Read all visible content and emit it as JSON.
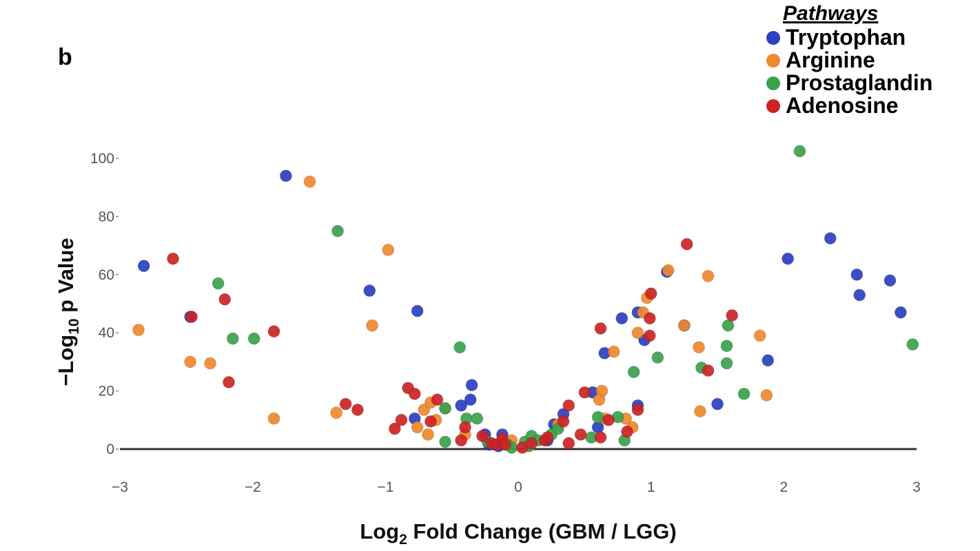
{
  "panel_label": "b",
  "legend": {
    "title": "Pathways",
    "items": [
      {
        "label": "Tryptophan",
        "color": "#2b3fc0"
      },
      {
        "label": "Arginine",
        "color": "#f0882e"
      },
      {
        "label": "Prostaglandin",
        "color": "#3aa24c"
      },
      {
        "label": "Adenosine",
        "color": "#cc2424"
      }
    ]
  },
  "chart_data": {
    "type": "scatter",
    "title": "",
    "xlabel": {
      "prefix": "Log",
      "sub": "2",
      "suffix": " Fold Change (GBM / LGG)"
    },
    "ylabel": {
      "prefix": "−Log",
      "sub": "10",
      "suffix": " p Value"
    },
    "xlim": [
      -3,
      3
    ],
    "ylim": [
      0,
      100
    ],
    "xticks": [
      {
        "value": -3,
        "label": "−3"
      },
      {
        "value": -2,
        "label": "−2"
      },
      {
        "value": -1,
        "label": "−1"
      },
      {
        "value": 0,
        "label": "0"
      },
      {
        "value": 1,
        "label": "1"
      },
      {
        "value": 2,
        "label": "2"
      },
      {
        "value": 3,
        "label": "3"
      }
    ],
    "yticks": [
      {
        "value": 0,
        "label": "0"
      },
      {
        "value": 20,
        "label": "20"
      },
      {
        "value": 40,
        "label": "40"
      },
      {
        "value": 60,
        "label": "60"
      },
      {
        "value": 80,
        "label": "80"
      },
      {
        "value": 100,
        "label": "100"
      }
    ],
    "grid": false,
    "legend_position": "top-right",
    "series": [
      {
        "name": "Tryptophan",
        "color": "#2b3fc0",
        "points": [
          [
            -2.82,
            63
          ],
          [
            -2.47,
            45.5
          ],
          [
            -1.75,
            94
          ],
          [
            -1.12,
            54.5
          ],
          [
            -0.76,
            47.5
          ],
          [
            -0.78,
            10.5
          ],
          [
            -0.35,
            22
          ],
          [
            -0.36,
            17
          ],
          [
            -0.43,
            15
          ],
          [
            -0.25,
            5
          ],
          [
            -0.22,
            1.5
          ],
          [
            -0.12,
            5
          ],
          [
            -0.15,
            1
          ],
          [
            0.27,
            8.5
          ],
          [
            0.34,
            12
          ],
          [
            0.22,
            3
          ],
          [
            0.56,
            19.5
          ],
          [
            0.6,
            7.5
          ],
          [
            0.65,
            33
          ],
          [
            0.78,
            45
          ],
          [
            0.9,
            15
          ],
          [
            0.9,
            47
          ],
          [
            0.95,
            37.5
          ],
          [
            1.12,
            61
          ],
          [
            1.25,
            42.5
          ],
          [
            1.5,
            15.5
          ],
          [
            1.88,
            30.5
          ],
          [
            2.03,
            65.5
          ],
          [
            2.35,
            72.5
          ],
          [
            2.55,
            60
          ],
          [
            2.57,
            53
          ],
          [
            2.8,
            58
          ],
          [
            2.88,
            47
          ]
        ]
      },
      {
        "name": "Arginine",
        "color": "#f0882e",
        "points": [
          [
            -2.86,
            41
          ],
          [
            -2.47,
            30
          ],
          [
            -2.32,
            29.5
          ],
          [
            -1.84,
            10.5
          ],
          [
            -1.57,
            92
          ],
          [
            -1.37,
            12.5
          ],
          [
            -1.1,
            42.5
          ],
          [
            -0.98,
            68.5
          ],
          [
            -0.76,
            7.5
          ],
          [
            -0.71,
            13.5
          ],
          [
            -0.68,
            5
          ],
          [
            -0.66,
            16
          ],
          [
            -0.62,
            10
          ],
          [
            -0.55,
            14
          ],
          [
            -0.4,
            5
          ],
          [
            -0.1,
            2
          ],
          [
            -0.05,
            3
          ],
          [
            0.3,
            8.5
          ],
          [
            0.65,
            10.5
          ],
          [
            0.63,
            20
          ],
          [
            0.61,
            17
          ],
          [
            0.72,
            33.5
          ],
          [
            0.81,
            10.5
          ],
          [
            0.86,
            7.5
          ],
          [
            0.9,
            40
          ],
          [
            0.94,
            47
          ],
          [
            0.97,
            52
          ],
          [
            1.13,
            61.5
          ],
          [
            1.25,
            42.5
          ],
          [
            1.36,
            35
          ],
          [
            1.37,
            13
          ],
          [
            1.43,
            59.5
          ],
          [
            1.82,
            39
          ],
          [
            1.87,
            18.5
          ]
        ]
      },
      {
        "name": "Prostaglandin",
        "color": "#3aa24c",
        "points": [
          [
            -2.26,
            57
          ],
          [
            -2.15,
            38
          ],
          [
            -1.99,
            38
          ],
          [
            -1.36,
            75
          ],
          [
            -0.55,
            2.5
          ],
          [
            -0.55,
            14
          ],
          [
            -0.44,
            35
          ],
          [
            -0.39,
            10.5
          ],
          [
            -0.31,
            10.5
          ],
          [
            -0.23,
            2.5
          ],
          [
            -0.08,
            1.5
          ],
          [
            -0.05,
            0.5
          ],
          [
            0.05,
            2.5
          ],
          [
            0.08,
            1
          ],
          [
            0.1,
            4.5
          ],
          [
            0.15,
            3
          ],
          [
            0.25,
            5
          ],
          [
            0.3,
            7
          ],
          [
            0.55,
            4
          ],
          [
            0.6,
            11
          ],
          [
            0.75,
            11
          ],
          [
            0.8,
            3
          ],
          [
            0.87,
            26.5
          ],
          [
            1.05,
            31.5
          ],
          [
            1.38,
            28
          ],
          [
            1.57,
            35.5
          ],
          [
            1.57,
            29.5
          ],
          [
            1.58,
            42.5
          ],
          [
            1.7,
            19
          ],
          [
            2.12,
            102.5
          ],
          [
            2.97,
            36
          ]
        ]
      },
      {
        "name": "Adenosine",
        "color": "#cc2424",
        "points": [
          [
            -2.6,
            65.5
          ],
          [
            -2.46,
            45.5
          ],
          [
            -2.21,
            51.5
          ],
          [
            -2.18,
            23
          ],
          [
            -1.84,
            40.5
          ],
          [
            -1.3,
            15.5
          ],
          [
            -1.21,
            13.5
          ],
          [
            -0.93,
            7
          ],
          [
            -0.88,
            10
          ],
          [
            -0.83,
            21
          ],
          [
            -0.78,
            19
          ],
          [
            -0.66,
            9.5
          ],
          [
            -0.61,
            17
          ],
          [
            -0.43,
            3
          ],
          [
            -0.4,
            7.5
          ],
          [
            -0.27,
            4.5
          ],
          [
            -0.2,
            2
          ],
          [
            -0.16,
            1.5
          ],
          [
            -0.12,
            3.5
          ],
          [
            -0.1,
            1.5
          ],
          [
            0.03,
            0.5
          ],
          [
            0.1,
            2
          ],
          [
            0.2,
            3
          ],
          [
            0.22,
            4
          ],
          [
            0.34,
            9.5
          ],
          [
            0.38,
            15
          ],
          [
            0.38,
            2
          ],
          [
            0.47,
            5
          ],
          [
            0.5,
            19.5
          ],
          [
            0.62,
            4
          ],
          [
            0.62,
            41.5
          ],
          [
            0.68,
            10
          ],
          [
            0.82,
            6
          ],
          [
            0.9,
            13.5
          ],
          [
            0.99,
            45
          ],
          [
            0.99,
            39
          ],
          [
            1.0,
            53.5
          ],
          [
            1.27,
            70.5
          ],
          [
            1.43,
            27
          ],
          [
            1.61,
            46
          ]
        ]
      }
    ]
  }
}
